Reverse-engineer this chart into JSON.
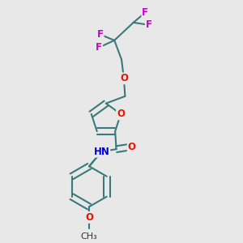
{
  "bg_color": "#e8e8e8",
  "bond_color": "#3a7a7a",
  "bond_width": 1.5,
  "atom_colors": {
    "F": "#cc00cc",
    "O": "#ee1100",
    "N": "#0000cc",
    "C": "#000000",
    "H": "#000000"
  },
  "font_size_atom": 9.5,
  "font_size_label": 8.5
}
